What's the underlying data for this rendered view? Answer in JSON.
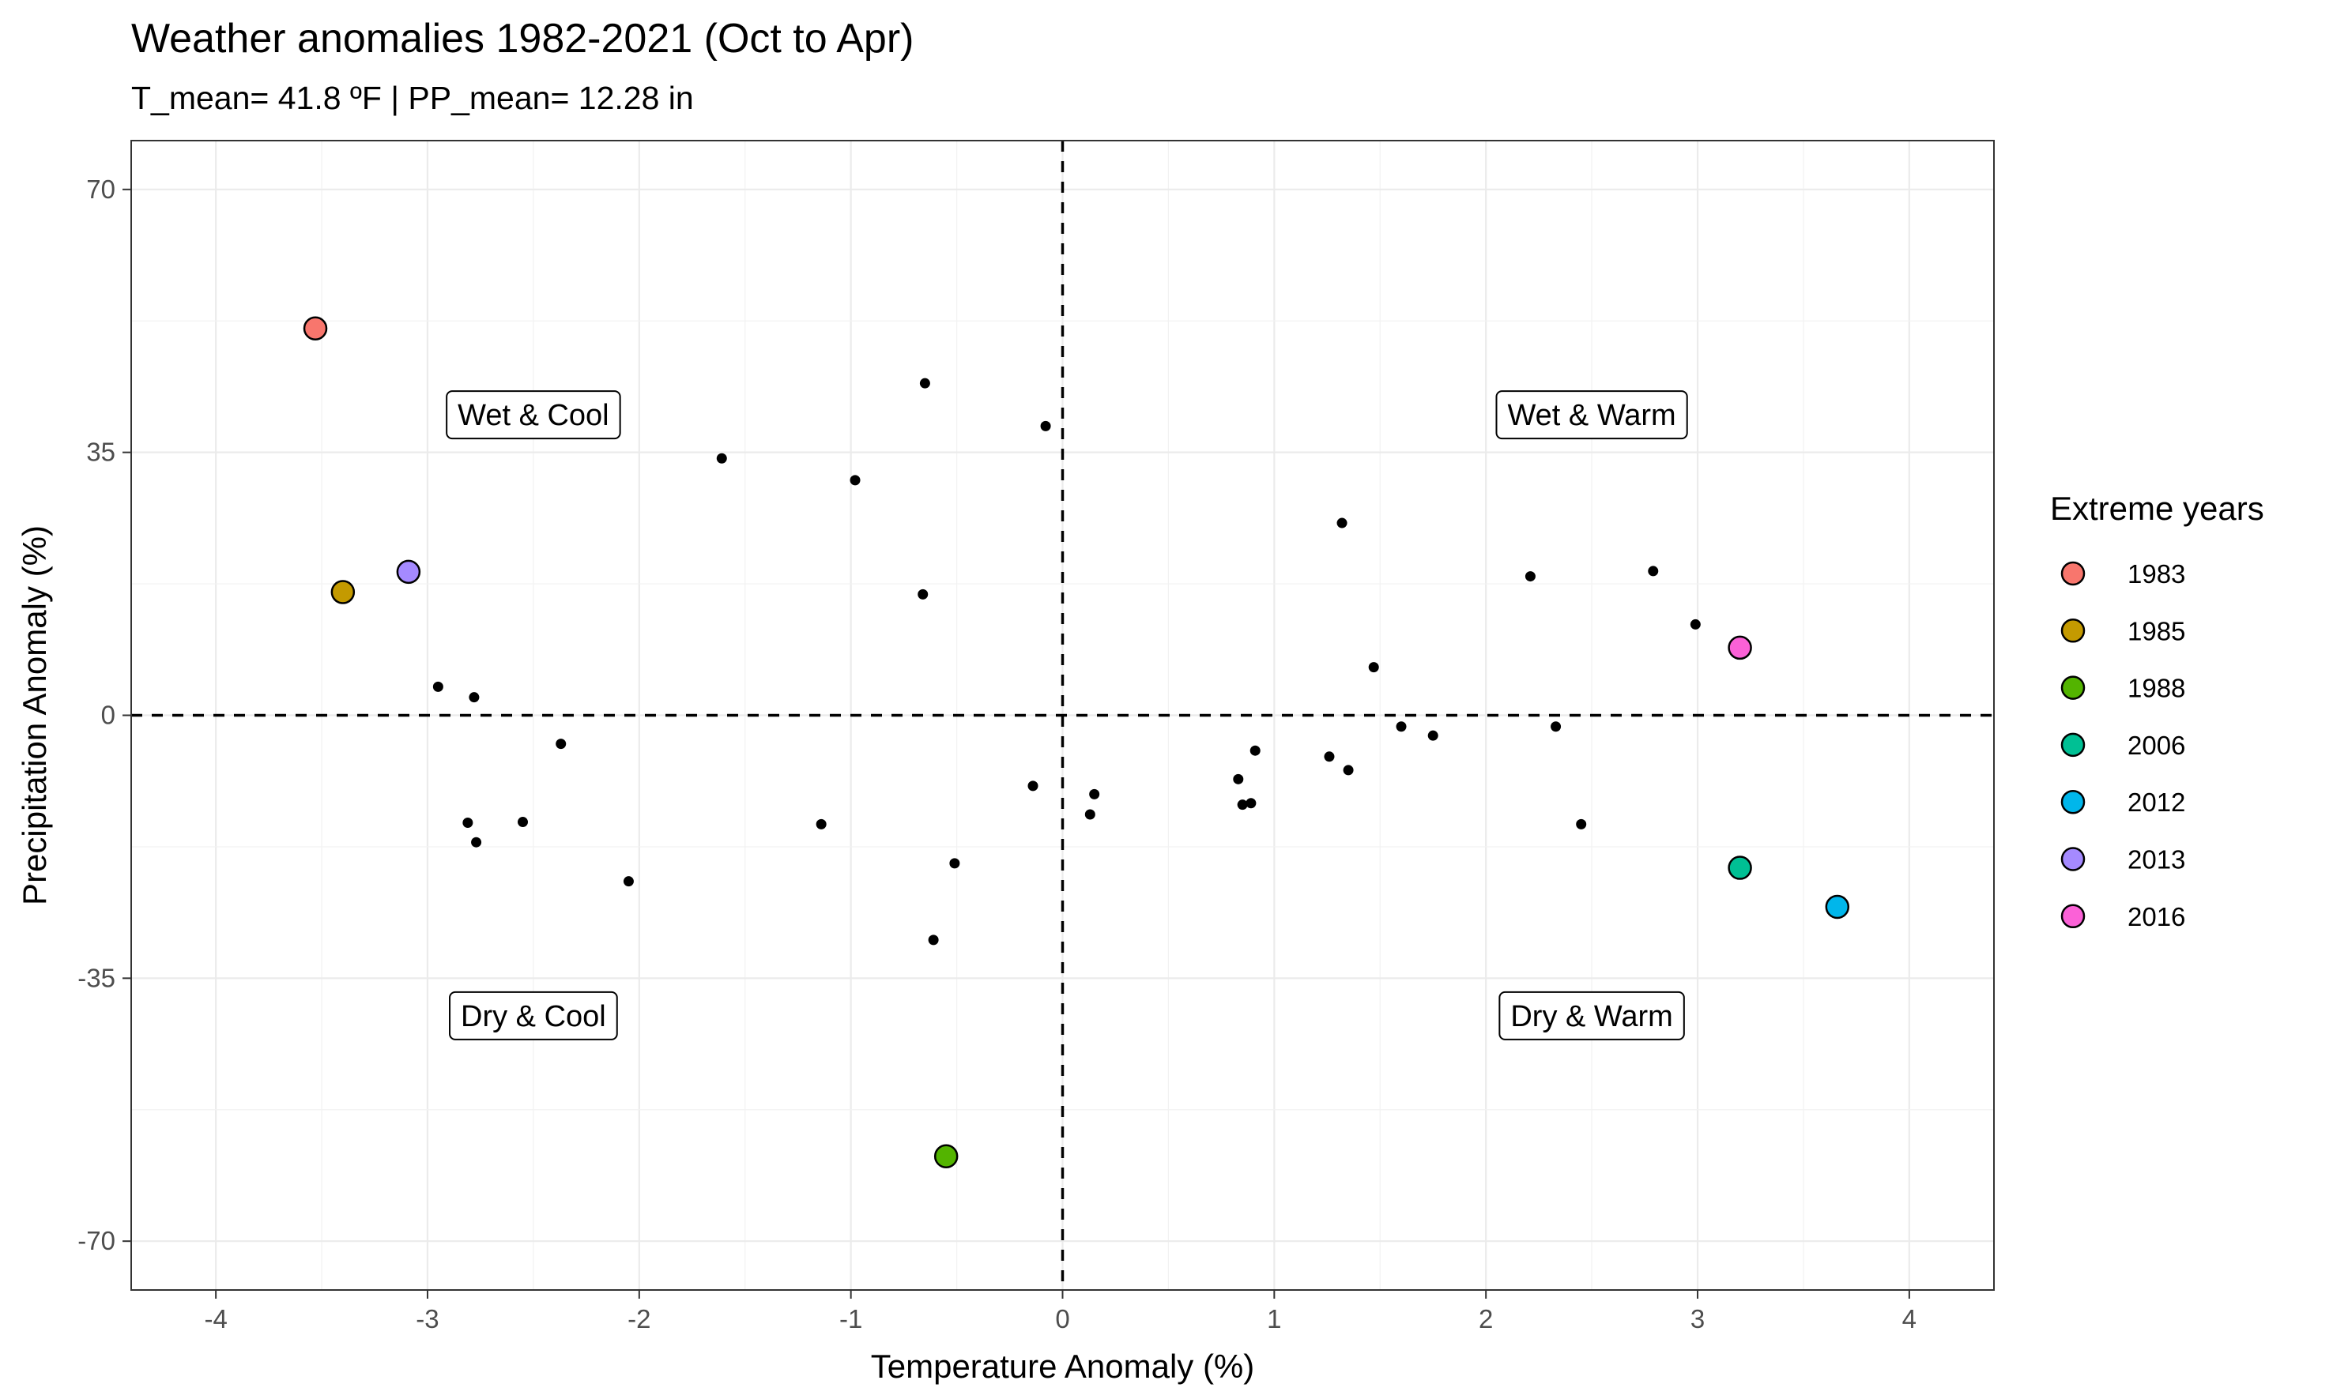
{
  "chart_data": {
    "type": "scatter",
    "title": "Weather anomalies 1982-2021 (Oct to Apr)",
    "subtitle": "T_mean= 41.8 ºF | PP_mean= 12.28 in",
    "xlabel": "Temperature Anomaly (%)",
    "ylabel": "Precipitation Anomaly (%)",
    "xlim": [
      -4.4,
      4.4
    ],
    "ylim": [
      -76.5,
      76.5
    ],
    "x_ticks": [
      -4,
      -3,
      -2,
      -1,
      0,
      1,
      2,
      3,
      4
    ],
    "y_ticks": [
      -70,
      -35,
      0,
      35,
      70
    ],
    "reference_lines": {
      "x": 0,
      "y": 0,
      "style": "dashed"
    },
    "grid": true,
    "legend_position": "right",
    "legend_title": "Extreme years",
    "quadrant_labels": [
      {
        "text": "Wet & Cool",
        "x": -2.5,
        "y": 40
      },
      {
        "text": "Wet & Warm",
        "x": 2.5,
        "y": 40
      },
      {
        "text": "Dry & Cool",
        "x": -2.5,
        "y": -40
      },
      {
        "text": "Dry & Warm",
        "x": 2.5,
        "y": -40
      }
    ],
    "extreme_years": [
      {
        "year": "1983",
        "x": -3.53,
        "y": 51.5,
        "color": "#F8766D"
      },
      {
        "year": "1985",
        "x": -3.4,
        "y": 16.4,
        "color": "#C49A00"
      },
      {
        "year": "1988",
        "x": -0.55,
        "y": -58.7,
        "color": "#53B400"
      },
      {
        "year": "2006",
        "x": 3.2,
        "y": -20.3,
        "color": "#00C094"
      },
      {
        "year": "2012",
        "x": 3.66,
        "y": -25.5,
        "color": "#00B6EB"
      },
      {
        "year": "2013",
        "x": -3.09,
        "y": 19.1,
        "color": "#A58AFF"
      },
      {
        "year": "2016",
        "x": 3.2,
        "y": 9.0,
        "color": "#FB61D7"
      }
    ],
    "other_years": [
      {
        "x": -0.65,
        "y": 44.2
      },
      {
        "x": -1.61,
        "y": 34.2
      },
      {
        "x": -0.98,
        "y": 31.3
      },
      {
        "x": -0.08,
        "y": 38.5
      },
      {
        "x": -0.66,
        "y": 16.1
      },
      {
        "x": -2.95,
        "y": 3.8
      },
      {
        "x": -2.78,
        "y": 2.4
      },
      {
        "x": -2.37,
        "y": -3.8
      },
      {
        "x": -2.81,
        "y": -14.3
      },
      {
        "x": -2.77,
        "y": -16.9
      },
      {
        "x": -2.55,
        "y": -14.2
      },
      {
        "x": -2.05,
        "y": -22.1
      },
      {
        "x": -1.14,
        "y": -14.5
      },
      {
        "x": -0.51,
        "y": -19.7
      },
      {
        "x": -0.61,
        "y": -29.9
      },
      {
        "x": -0.14,
        "y": -9.4
      },
      {
        "x": 0.15,
        "y": -10.5
      },
      {
        "x": 0.13,
        "y": -13.2
      },
      {
        "x": 1.32,
        "y": 25.6
      },
      {
        "x": 1.47,
        "y": 6.4
      },
      {
        "x": 0.83,
        "y": -8.5
      },
      {
        "x": 0.85,
        "y": -11.9
      },
      {
        "x": 0.89,
        "y": -11.7
      },
      {
        "x": 0.91,
        "y": -4.7
      },
      {
        "x": 1.26,
        "y": -5.5
      },
      {
        "x": 1.35,
        "y": -7.3
      },
      {
        "x": 1.6,
        "y": -1.5
      },
      {
        "x": 1.75,
        "y": -2.7
      },
      {
        "x": 2.21,
        "y": 18.5
      },
      {
        "x": 2.33,
        "y": -1.5
      },
      {
        "x": 2.45,
        "y": -14.5
      },
      {
        "x": 2.79,
        "y": 19.2
      },
      {
        "x": 2.99,
        "y": 12.1
      }
    ]
  }
}
